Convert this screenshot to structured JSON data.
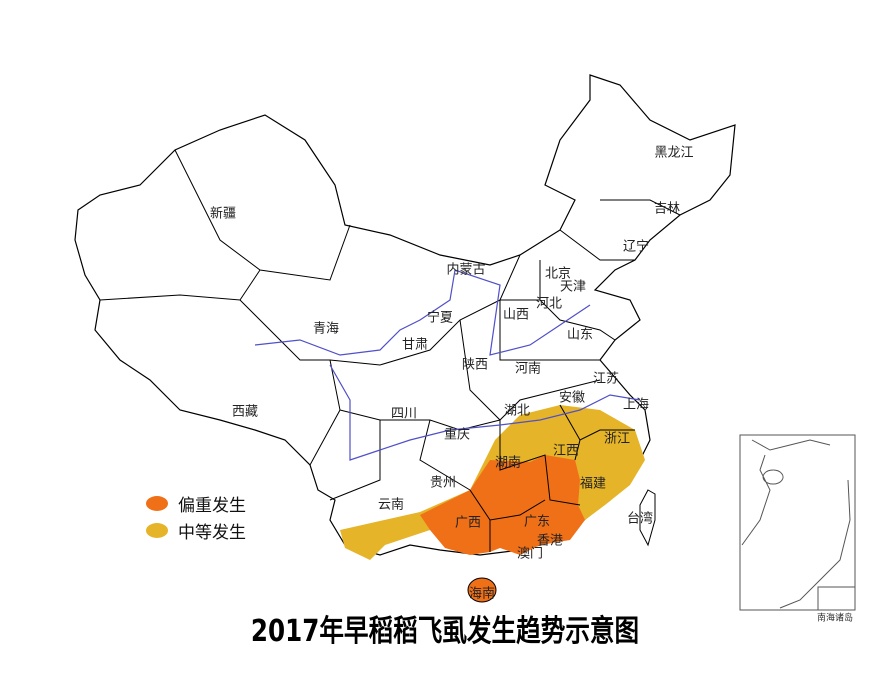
{
  "title": "2017年早稻稻飞虱发生趋势示意图",
  "legend": [
    {
      "label": "偏重发生",
      "color": "#F07018"
    },
    {
      "label": "中等发生",
      "color": "#E6B428"
    }
  ],
  "provinces": [
    "新疆",
    "西藏",
    "青海",
    "甘肃",
    "内蒙古",
    "宁夏",
    "陕西",
    "山西",
    "北京",
    "天津",
    "河北",
    "山东",
    "河南",
    "辽宁",
    "吉林",
    "黑龙江",
    "四川",
    "重庆",
    "湖北",
    "安徽",
    "江苏",
    "上海",
    "浙江",
    "江西",
    "湖南",
    "福建",
    "贵州",
    "云南",
    "广西",
    "广东",
    "香港",
    "澳门",
    "海南",
    "台湾"
  ],
  "inset": {
    "label": "南海诸岛"
  },
  "colors": {
    "border": "#000000",
    "river": "#5050c8",
    "severe": "#F07018",
    "moderate": "#E6B428"
  }
}
